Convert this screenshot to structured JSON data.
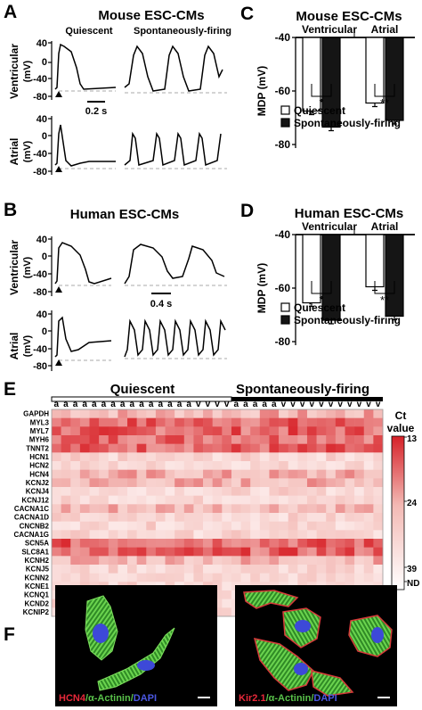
{
  "panels": {
    "A": {
      "letter": "A",
      "title": "Mouse ESC-CMs",
      "col1": "Quiescent",
      "col2": "Spontaneously-firing",
      "row1": "Ventricular",
      "row2": "Atrial",
      "unit": "(mV)",
      "scale": "0.2 s",
      "yticks": [
        "40",
        "0",
        "-40",
        "-80"
      ]
    },
    "B": {
      "letter": "B",
      "title": "Human ESC-CMs",
      "row1": "Ventricular",
      "row2": "Atrial",
      "unit": "(mV)",
      "scale": "0.4 s",
      "yticks": [
        "40",
        "0",
        "-40",
        "-80"
      ]
    },
    "E": {
      "letter": "E",
      "quiescent": "Quiescent",
      "firing": "Spontaneously-firing",
      "col_labels": [
        "a",
        "a",
        "a",
        "a",
        "a",
        "a",
        "a",
        "a",
        "a",
        "a",
        "a",
        "a",
        "a",
        "a",
        "a",
        "v",
        "v",
        "v",
        "v",
        "a",
        "a",
        "a",
        "a",
        "a",
        "v",
        "v",
        "v",
        "v",
        "v",
        "v",
        "v",
        "v",
        "v",
        "v",
        "v"
      ],
      "genes": [
        "GAPDH",
        "MYL3",
        "MYL7",
        "MYH6",
        "TNNT2",
        "HCN1",
        "HCN2",
        "HCN4",
        "KCNJ2",
        "KCNJ4",
        "KCNJ12",
        "CACNA1C",
        "CACNA1D",
        "CNCNB2",
        "CACNA1G",
        "SCN5A",
        "SLC8A1",
        "KCNH2",
        "KCNJ5",
        "KCNN2",
        "KCNE1",
        "KCNQ1",
        "KCND2",
        "KCNIP2"
      ],
      "legend_title": "Ct value",
      "legend_ticks": [
        "13",
        "24",
        "39",
        "ND"
      ]
    },
    "F": {
      "letter": "F",
      "left_caption": [
        {
          "text": "HCN4",
          "color": "#e8283a"
        },
        {
          "text": "/α-Actinin/",
          "color": "#59c14a"
        },
        {
          "text": "DAPI",
          "color": "#4a57e0"
        }
      ],
      "right_caption": [
        {
          "text": "Kir2.1",
          "color": "#e8283a"
        },
        {
          "text": "/α-Actinin/",
          "color": "#59c14a"
        },
        {
          "text": "DAPI",
          "color": "#4a57e0"
        }
      ]
    }
  },
  "chart_data": [
    {
      "type": "bar",
      "panel": "C",
      "letter": "C",
      "title": "Mouse ESC-CMs",
      "categories": [
        "Ventricular",
        "Atrial"
      ],
      "ylabel": "MDP (mV)",
      "ylim": [
        -80,
        -40
      ],
      "yticks": [
        "-40",
        "-60",
        "-80"
      ],
      "series": [
        {
          "name": "Quiescent",
          "values": [
            -67.5,
            -64.5
          ],
          "color": "#ffffff"
        },
        {
          "name": "Spontaneously-firing",
          "values": [
            -73.5,
            -71
          ],
          "color": "#151515"
        }
      ],
      "significance": [
        "*",
        "**"
      ]
    },
    {
      "type": "bar",
      "panel": "D",
      "letter": "D",
      "title": "Human ESC-CMs",
      "categories": [
        "Ventricular",
        "Atrial"
      ],
      "ylabel": "MDP (mV)",
      "ylim": [
        -80,
        -40
      ],
      "yticks": [
        "-40",
        "-60",
        "-80"
      ],
      "series": [
        {
          "name": "Quiescent",
          "values": [
            -65.5,
            -59.5
          ],
          "color": "#ffffff"
        },
        {
          "name": "Spontaneously-firing",
          "values": [
            -72,
            -70.5
          ],
          "color": "#151515"
        }
      ],
      "significance": [
        "*",
        "**"
      ]
    }
  ]
}
